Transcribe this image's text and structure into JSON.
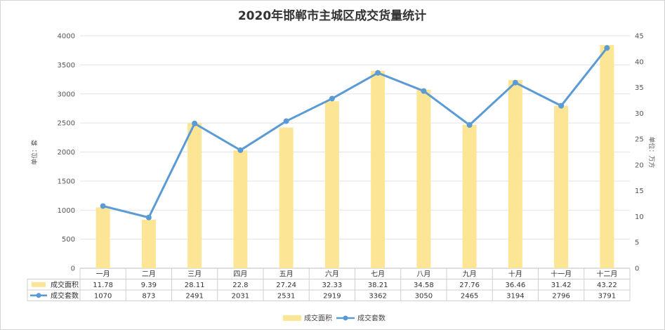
{
  "chart_data": {
    "type": "bar+line",
    "title": "2020年邯郸市主城区成交货量统计",
    "categories": [
      "一月",
      "二月",
      "三月",
      "四月",
      "五月",
      "六月",
      "七月",
      "八月",
      "九月",
      "十月",
      "十一月",
      "十二月"
    ],
    "series": [
      {
        "name": "成交面积",
        "type": "bar",
        "axis": "right",
        "color": "#fce594",
        "values": [
          11.78,
          9.39,
          28.11,
          22.8,
          27.24,
          32.33,
          38.21,
          34.58,
          27.76,
          36.46,
          31.42,
          43.22
        ],
        "labels": [
          "11.78",
          "9.39",
          "28.11",
          "22.8",
          "27.24",
          "32.33",
          "38.21",
          "34.58",
          "27.76",
          "36.46",
          "31.42",
          "43.22"
        ]
      },
      {
        "name": "成交套数",
        "type": "line",
        "axis": "left",
        "color": "#5b9bd5",
        "values": [
          1070,
          873,
          2491,
          2031,
          2531,
          2919,
          3362,
          3050,
          2465,
          3194,
          2796,
          3791
        ],
        "labels": [
          "1070",
          "873",
          "2491",
          "2031",
          "2531",
          "2919",
          "3362",
          "3050",
          "2465",
          "3194",
          "2796",
          "3791"
        ]
      }
    ],
    "y_left": {
      "label": "单位：套",
      "ylim": [
        0,
        4000
      ],
      "ticks": [
        "0",
        "500",
        "1000",
        "1500",
        "2000",
        "2500",
        "3000",
        "3500",
        "4000"
      ]
    },
    "y_right": {
      "label": "单位：万方",
      "ylim": [
        0,
        45
      ],
      "ticks": [
        "0",
        "5",
        "10",
        "15",
        "20",
        "25",
        "30",
        "35",
        "40",
        "45"
      ]
    },
    "grid": true,
    "legend_position": "bottom",
    "data_table": true
  }
}
